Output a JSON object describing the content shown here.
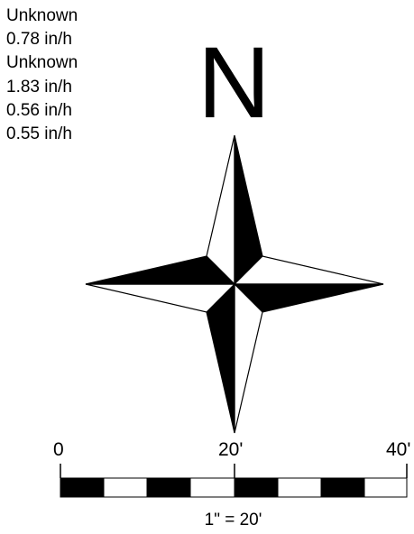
{
  "legend_values": [
    "Unknown",
    "0.78 in/h",
    "Unknown",
    "1.83 in/h",
    "0.56 in/h",
    "0.55 in/h"
  ],
  "north_arrow": {
    "label": "N"
  },
  "scale_bar": {
    "tick_labels": [
      "0",
      "20'",
      "40'"
    ],
    "ratio": "1\" = 20'"
  },
  "colors": {
    "ink": "#000000",
    "paper": "#ffffff"
  }
}
